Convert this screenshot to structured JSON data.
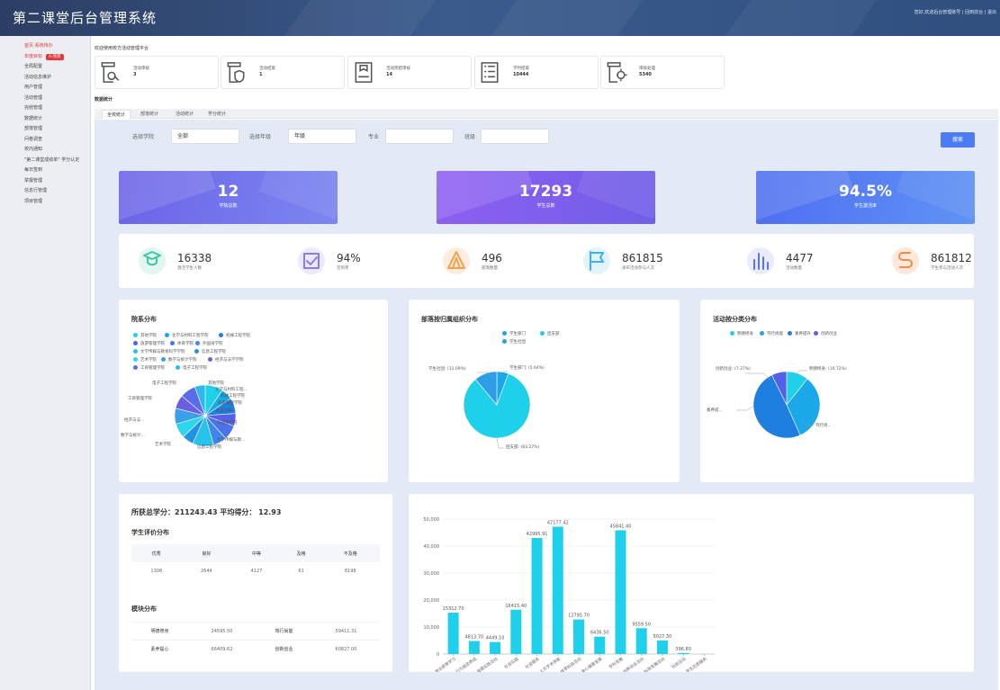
{
  "header": {
    "title": "第二课堂后台管理系统",
    "right_text": "您好,欢迎后台管理账号 | 回到前台 | 退出"
  },
  "sidebar": {
    "items": [
      {
        "label": "首页 系统待办",
        "style": "red"
      },
      {
        "label": "年度目标",
        "style": "red",
        "badge": "A-项目"
      },
      {
        "label": "全局配置"
      },
      {
        "label": "活动信息维护"
      },
      {
        "label": "用户管理"
      },
      {
        "label": "活动管理"
      },
      {
        "label": "完结管理"
      },
      {
        "label": "数据统计"
      },
      {
        "label": "部落管理"
      },
      {
        "label": "问卷调查"
      },
      {
        "label": "校内通知"
      },
      {
        "label": "\"第二课堂成绩单\" 学分认定"
      },
      {
        "label": "每日签到"
      },
      {
        "label": "举报管理"
      },
      {
        "label": "信息行管理"
      },
      {
        "label": "项目管理"
      }
    ]
  },
  "welcome": "欢迎使用校方活动管理平台",
  "quick_cards": [
    {
      "label": "活动审核",
      "value": "3",
      "icon": "doc-search-icon"
    },
    {
      "label": "活动结束",
      "value": "1",
      "icon": "doc-shield-icon"
    },
    {
      "label": "活动完结审核",
      "value": "14",
      "icon": "doc-stamp-icon"
    },
    {
      "label": "学时结束",
      "value": "10444",
      "icon": "checklist-icon"
    },
    {
      "label": "审核处理",
      "value": "5340",
      "icon": "doc-gear-icon"
    }
  ],
  "stats_title": "数据统计",
  "tabs": [
    "全校统计",
    "部落统计",
    "活动统计",
    "学分统计"
  ],
  "filters": {
    "college_label": "选择学院",
    "college_value": "全部",
    "grade_label": "选择年级",
    "grade_value": "年级",
    "major_label": "专业",
    "class_label": "班级",
    "search_label": "搜索"
  },
  "big_cards": [
    {
      "value": "12",
      "label": "学院总数",
      "color_from": "#6c63e8",
      "color_to": "#7b86f0"
    },
    {
      "value": "17293",
      "label": "学生总数",
      "color_from": "#8e5ff0",
      "color_to": "#6f5fe8"
    },
    {
      "value": "94.5%",
      "label": "学生激活率",
      "color_from": "#4f6ef0",
      "color_to": "#5f93f5"
    }
  ],
  "metrics": [
    {
      "value": "16338",
      "label": "激活学生人数",
      "icon": "student-icon",
      "bg": "#e2f6f1",
      "fg": "#3cc7a0"
    },
    {
      "value": "94%",
      "label": "签到率",
      "icon": "checkbox-icon",
      "bg": "#ebe9fb",
      "fg": "#8a7ee6"
    },
    {
      "value": "496",
      "label": "部落数量",
      "icon": "tent-icon",
      "bg": "#fdece0",
      "fg": "#f5a04a"
    },
    {
      "value": "861815",
      "label": "发布活动参与人次",
      "icon": "flag-icon",
      "bg": "#e2f3fb",
      "fg": "#3db2e8"
    },
    {
      "value": "4477",
      "label": "活动数量",
      "icon": "bar-icon",
      "bg": "#e8ecfd",
      "fg": "#5b74ee"
    },
    {
      "value": "861812",
      "label": "学生参与活动人次",
      "icon": "route-icon",
      "bg": "#fde8dc",
      "fg": "#f28a4a"
    }
  ],
  "pie1": {
    "title": "院系分布",
    "legend": [
      {
        "name": "其他学院",
        "color": "#1fd0ea"
      },
      {
        "name": "化学与材料工程学院",
        "color": "#19a7e8"
      },
      {
        "name": "机械工程学院",
        "color": "#1f7fe0"
      },
      {
        "name": "旅游管理学院",
        "color": "#5560e8"
      },
      {
        "name": "体育学院",
        "color": "#4a72ec"
      },
      {
        "name": "外国语学院",
        "color": "#3f86ee"
      },
      {
        "name": "文学传媒与教育科学学院",
        "color": "#27c3ea"
      },
      {
        "name": "信息工程学院",
        "color": "#2490e6"
      },
      {
        "name": "艺术学院",
        "color": "#2cd7ee"
      },
      {
        "name": "数学与统计学院",
        "color": "#3aa0ec"
      },
      {
        "name": "经济与法学学院",
        "color": "#6a5fe4"
      },
      {
        "name": "工商管理学院",
        "color": "#5a6cea"
      },
      {
        "name": "电子工程学院",
        "color": "#30b8ee"
      }
    ],
    "labels": [
      "其他学院",
      "化学与材料工程...",
      "机械工程学院",
      "旅游管理学院",
      "体育学院",
      "外国语学院",
      "文学传媒与教...",
      "信息工程学院",
      "艺术学院",
      "数学与统计...",
      "经济与法...",
      "工商管理学院",
      "电子工程学院"
    ]
  },
  "pie2": {
    "title": "部落按归属组织分布",
    "legend": [
      {
        "name": "学生部门",
        "color": "#19a7e8"
      },
      {
        "name": "团支部",
        "color": "#1fd0ea"
      },
      {
        "name": "学生社团",
        "color": "#2e9de8"
      }
    ],
    "labels": {
      "a": "学生社团: (11.09%)",
      "b": "学生部门: (5.64%)",
      "c": "团支部: (83.27%)"
    }
  },
  "pie3": {
    "title": "活动按分类分布",
    "legend": [
      {
        "name": "明德修身",
        "color": "#1fd0ea"
      },
      {
        "name": "笃行尚能",
        "color": "#1aa8e8"
      },
      {
        "name": "素养提升",
        "color": "#1f7fe0"
      },
      {
        "name": "创新创业",
        "color": "#5560e8"
      }
    ],
    "labels": {
      "a": "创新创业: (7.37%)",
      "b": "明德修身: (10.72%)",
      "c": "素养提...",
      "d": "笃行尚..."
    }
  },
  "credits": {
    "total_text": "所获总学分：211243.43 平均得分： 12.93",
    "eval_title": "学生评价分布",
    "eval_headers": [
      "优秀",
      "良好",
      "中等",
      "及格",
      "不及格"
    ],
    "eval_values": [
      "1308",
      "2644",
      "4127",
      "61",
      "8198"
    ],
    "module_title": "模块分布",
    "modules": [
      [
        "明德修身",
        "24595.50",
        "笃行尚能",
        "59411.31"
      ],
      [
        "素养提心",
        "66409.62",
        "创新创业",
        "60827.00"
      ]
    ]
  },
  "chart_data": {
    "type": "bar",
    "categories": [
      "政治思想学习",
      "行为规范养成",
      "道德实践活动",
      "社会实践",
      "社会服务",
      "人文学术讲座",
      "体育科技活动",
      "身心健康发展",
      "学科竞赛",
      "创新创业活动",
      "科技竞赛活动",
      "社团活动",
      "学生志愿服务"
    ],
    "values": [
      15312.7,
      4813.7,
      4449.1,
      16415.4,
      42995.91,
      47177.42,
      12795.7,
      6436.5,
      45841.4,
      9559.5,
      5027.3,
      396.8,
      0
    ],
    "value_labels": [
      "15312.70",
      "4813.70",
      "4449.10",
      "16415.40",
      "42995.91",
      "47177.42",
      "12795.70",
      "6436.50",
      "45841.40",
      "9559.50",
      "5027.30",
      "396.80",
      ""
    ],
    "yticks": [
      "0",
      "10,000",
      "20,000",
      "30,000",
      "40,000",
      "50,000"
    ],
    "ylim": [
      0,
      50000
    ],
    "color": "#1fd0ea",
    "grid": true
  }
}
